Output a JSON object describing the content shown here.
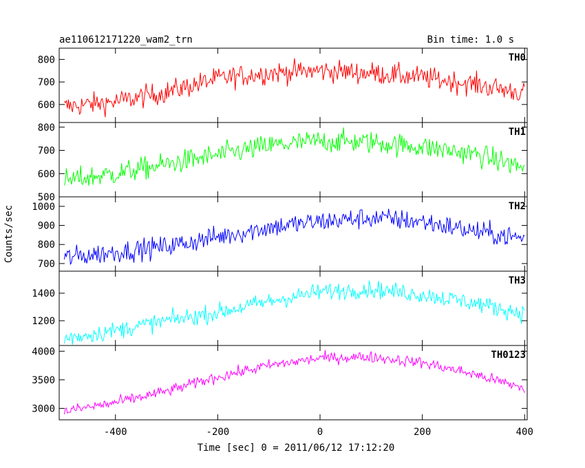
{
  "chart_data": {
    "type": "line",
    "title": "ae110612171220_wam2_trn",
    "subtitle": "Bin time: 1.0 s",
    "xlabel": "Time [sec] 0 = 2011/06/12 17:12:20",
    "ylabel": "Counts/sec",
    "xlim": [
      -510,
      405
    ],
    "x_ticks": [
      -400,
      -200,
      0,
      200,
      400
    ],
    "grid": false,
    "panels": [
      {
        "name": "TH0",
        "color": "#ff0000",
        "ylim": [
          520,
          850
        ],
        "y_ticks": [
          600,
          700,
          800
        ],
        "noise": 35,
        "trend": [
          [
            -500,
            590
          ],
          [
            -400,
            612
          ],
          [
            -300,
            655
          ],
          [
            -200,
            715
          ],
          [
            -100,
            740
          ],
          [
            0,
            750
          ],
          [
            100,
            740
          ],
          [
            200,
            720
          ],
          [
            300,
            690
          ],
          [
            400,
            650
          ]
        ]
      },
      {
        "name": "TH1",
        "color": "#00ff00",
        "ylim": [
          500,
          820
        ],
        "y_ticks": [
          500,
          600,
          700,
          800
        ],
        "noise": 35,
        "trend": [
          [
            -500,
            570
          ],
          [
            -400,
            600
          ],
          [
            -300,
            640
          ],
          [
            -200,
            680
          ],
          [
            -100,
            720
          ],
          [
            0,
            740
          ],
          [
            100,
            735
          ],
          [
            200,
            715
          ],
          [
            300,
            685
          ],
          [
            400,
            625
          ]
        ]
      },
      {
        "name": "TH2",
        "color": "#0000ff",
        "ylim": [
          660,
          1050
        ],
        "y_ticks": [
          700,
          800,
          900,
          1000
        ],
        "noise": 40,
        "trend": [
          [
            -500,
            730
          ],
          [
            -400,
            760
          ],
          [
            -300,
            790
          ],
          [
            -200,
            840
          ],
          [
            -100,
            890
          ],
          [
            0,
            920
          ],
          [
            100,
            940
          ],
          [
            200,
            920
          ],
          [
            300,
            870
          ],
          [
            400,
            830
          ]
        ]
      },
      {
        "name": "TH3",
        "color": "#00ffff",
        "ylim": [
          1020,
          1560
        ],
        "y_ticks": [
          1200,
          1400
        ],
        "noise": 45,
        "trend": [
          [
            -500,
            1070
          ],
          [
            -400,
            1130
          ],
          [
            -300,
            1200
          ],
          [
            -200,
            1260
          ],
          [
            -100,
            1340
          ],
          [
            0,
            1410
          ],
          [
            100,
            1430
          ],
          [
            200,
            1390
          ],
          [
            300,
            1330
          ],
          [
            400,
            1250
          ]
        ]
      },
      {
        "name": "TH0123",
        "color": "#ff00ff",
        "ylim": [
          2800,
          4100
        ],
        "y_ticks": [
          3000,
          3500,
          4000
        ],
        "noise": 70,
        "trend": [
          [
            -500,
            2950
          ],
          [
            -400,
            3100
          ],
          [
            -300,
            3300
          ],
          [
            -200,
            3550
          ],
          [
            -100,
            3750
          ],
          [
            0,
            3880
          ],
          [
            100,
            3900
          ],
          [
            200,
            3800
          ],
          [
            300,
            3600
          ],
          [
            400,
            3350
          ]
        ]
      }
    ]
  }
}
